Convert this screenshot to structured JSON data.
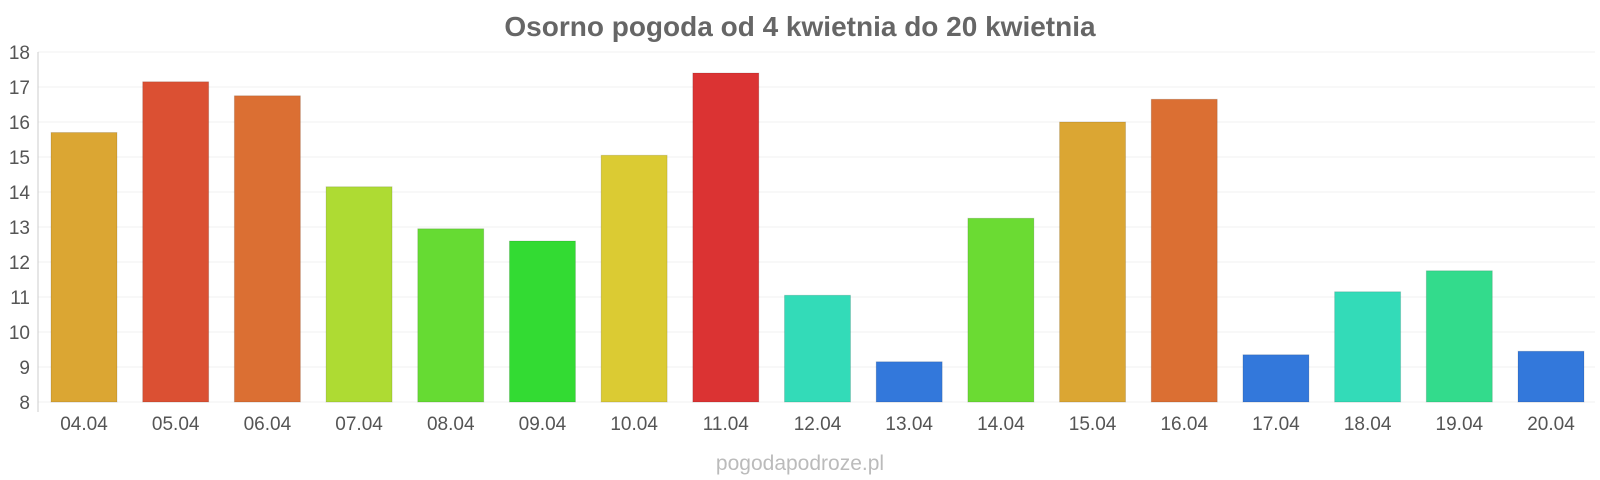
{
  "chart_data": {
    "type": "bar",
    "title": "Osorno pogoda od 4 kwietnia do 20 kwietnia",
    "xlabel": "",
    "ylabel": "",
    "categories": [
      "04.04",
      "05.04",
      "06.04",
      "07.04",
      "08.04",
      "09.04",
      "10.04",
      "11.04",
      "12.04",
      "13.04",
      "14.04",
      "15.04",
      "16.04",
      "17.04",
      "18.04",
      "19.04",
      "20.04"
    ],
    "values": [
      15.7,
      17.15,
      16.75,
      14.15,
      12.95,
      12.6,
      15.05,
      17.4,
      11.05,
      9.15,
      13.25,
      16.0,
      16.65,
      9.35,
      11.15,
      11.75,
      9.45
    ],
    "colors": [
      "#dba633",
      "#db5033",
      "#db6f33",
      "#aedb33",
      "#66db33",
      "#33db33",
      "#dbcb33",
      "#db3333",
      "#33dbb8",
      "#3378db",
      "#6bdb33",
      "#dba633",
      "#db6f33",
      "#3378db",
      "#33dbb8",
      "#33db8c",
      "#3378db"
    ],
    "ylim": [
      8,
      18
    ],
    "yticks": [
      "8",
      "9",
      "10",
      "11",
      "12",
      "13",
      "14",
      "15",
      "16",
      "17",
      "18"
    ],
    "grid": true,
    "legend": "none"
  },
  "watermark": "pogodapodroze.pl"
}
